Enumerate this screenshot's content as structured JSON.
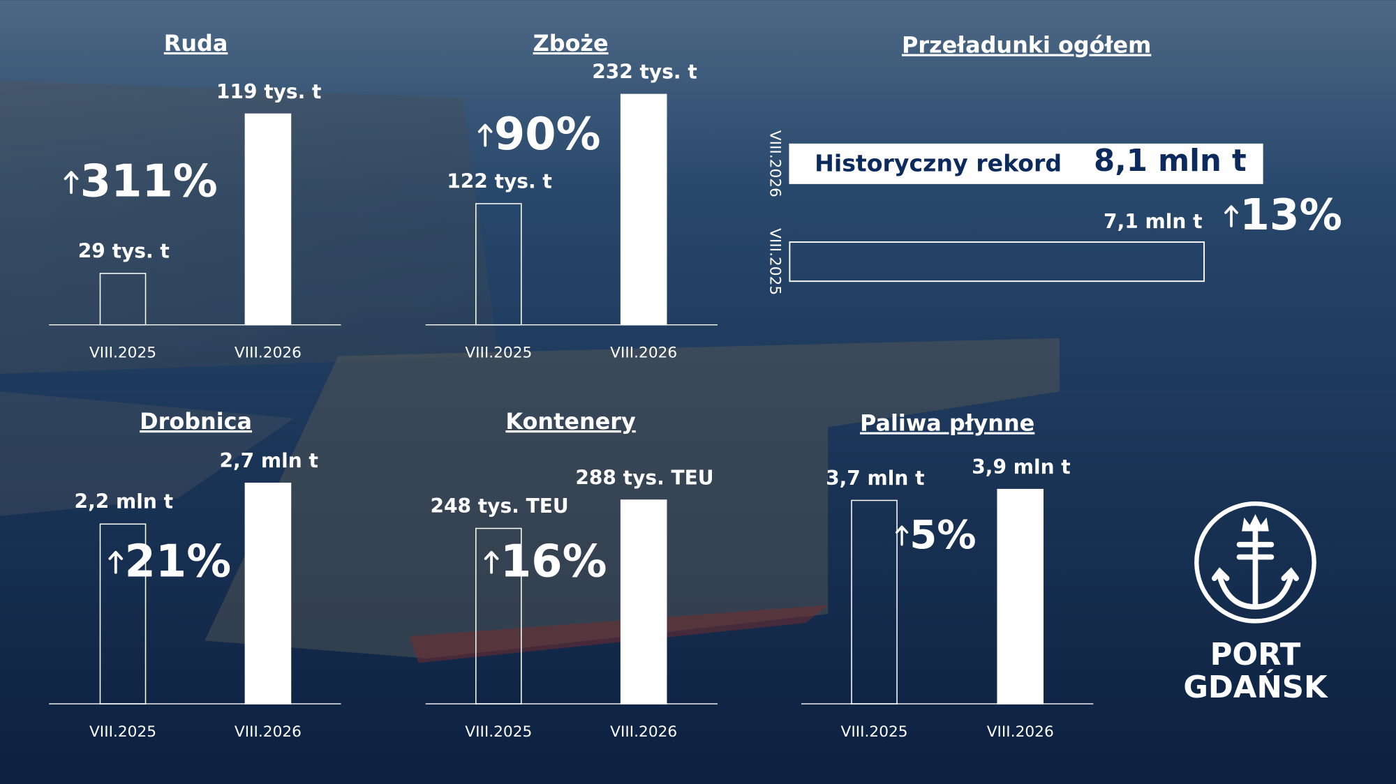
{
  "chart_data": [
    {
      "type": "bar",
      "title": "Ruda",
      "categories": [
        "VIII.2025",
        "VIII.2026"
      ],
      "values": [
        29,
        119
      ],
      "value_labels": [
        "29 tys. t",
        "119 tys. t"
      ],
      "change": "311%",
      "color": "#ffffff"
    },
    {
      "type": "bar",
      "title": "Zboże",
      "categories": [
        "VIII.2025",
        "VIII.2026"
      ],
      "values": [
        122,
        232
      ],
      "value_labels": [
        "122 tys. t",
        "232 tys. t"
      ],
      "change": "90%",
      "color": "#ffffff"
    },
    {
      "type": "bar",
      "orientation": "horizontal",
      "title": "Przeładunki ogółem",
      "categories": [
        "VIII.2026",
        "VIII.2025"
      ],
      "values": [
        8.1,
        7.1
      ],
      "value_labels": [
        "8,1 mln t",
        "7,1 mln t"
      ],
      "annotation": "Historyczny rekord",
      "change": "13%",
      "color": "#ffffff"
    },
    {
      "type": "bar",
      "title": "Drobnica",
      "categories": [
        "VIII.2025",
        "VIII.2026"
      ],
      "values": [
        2.2,
        2.7
      ],
      "value_labels": [
        "2,2 mln t",
        "2,7 mln t"
      ],
      "change": "21%",
      "color": "#ffffff"
    },
    {
      "type": "bar",
      "title": "Kontenery",
      "categories": [
        "VIII.2025",
        "VIII.2026"
      ],
      "values": [
        248,
        288
      ],
      "value_labels": [
        "248 tys. TEU",
        "288 tys. TEU"
      ],
      "change": "16%",
      "color": "#ffffff"
    },
    {
      "type": "bar",
      "title": "Paliwa płynne",
      "categories": [
        "VIII.2025",
        "VIII.2026"
      ],
      "values": [
        3.7,
        3.9
      ],
      "value_labels": [
        "3,7 mln t",
        "3,9 mln t"
      ],
      "change": "5%",
      "color": "#ffffff"
    }
  ],
  "logo": {
    "lines": [
      "PORT",
      "GDAŃSK"
    ]
  }
}
